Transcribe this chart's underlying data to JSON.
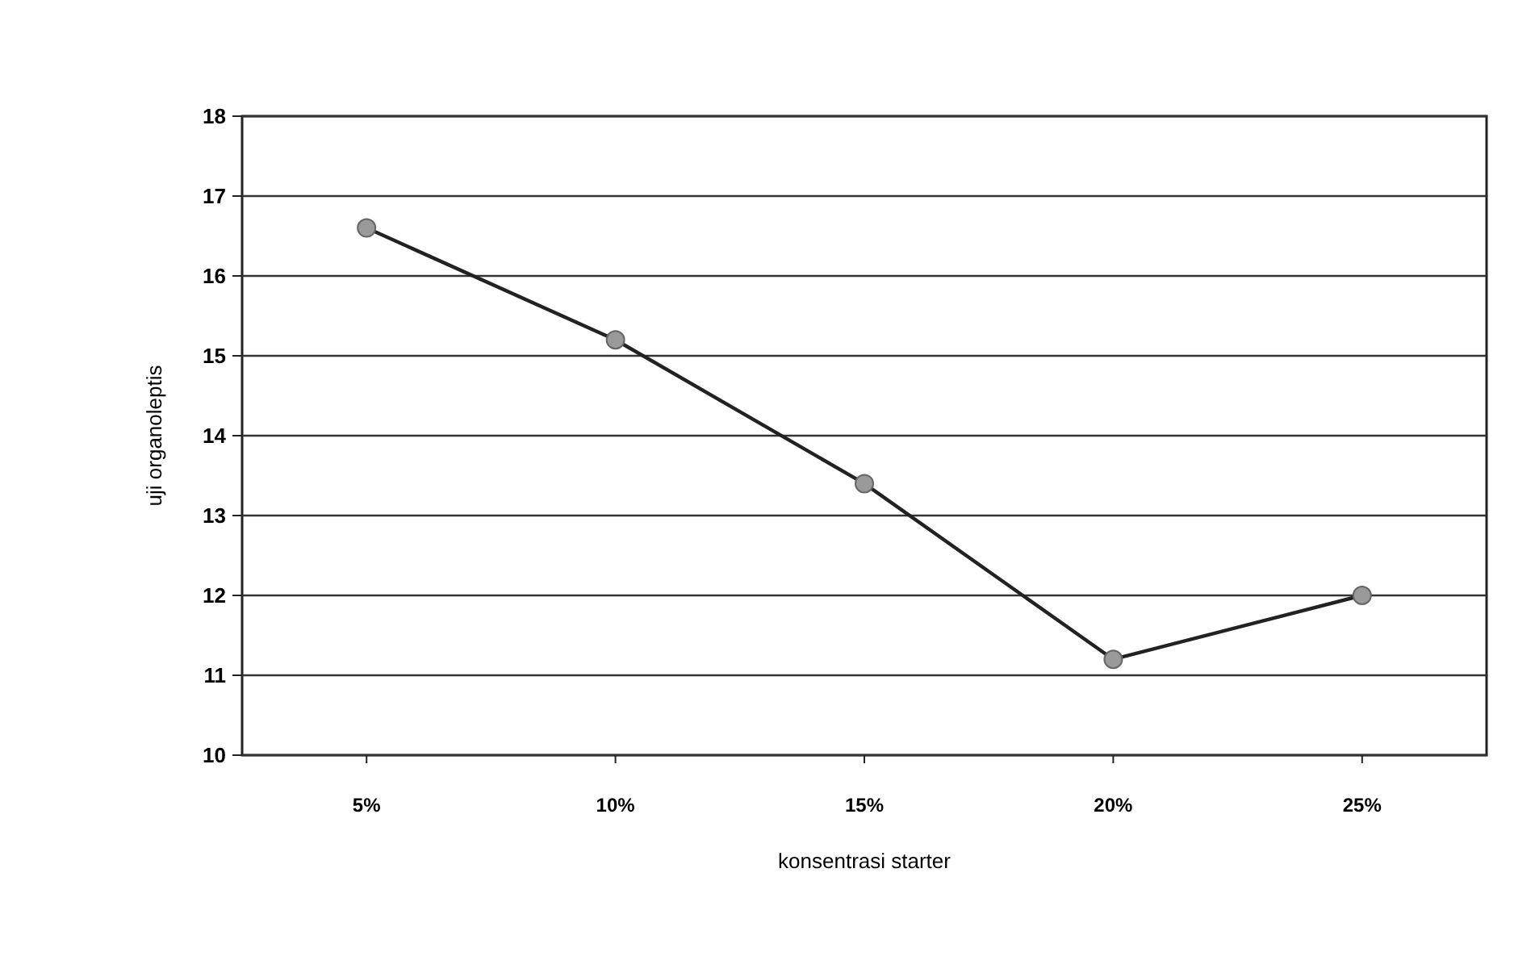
{
  "chart_data": {
    "type": "line",
    "xlabel": "konsentrasi starter",
    "ylabel": "uji organoleptis",
    "categories": [
      "5%",
      "10%",
      "15%",
      "20%",
      "25%"
    ],
    "series": [
      {
        "color": "#222222",
        "values": [
          16.6,
          15.2,
          13.4,
          11.2,
          12.0
        ]
      }
    ],
    "ylim": [
      10,
      18
    ],
    "yticks": [
      10,
      11,
      12,
      13,
      14,
      15,
      16,
      17,
      18
    ],
    "grid": "y",
    "marker": "circle",
    "line_style": "solid"
  }
}
